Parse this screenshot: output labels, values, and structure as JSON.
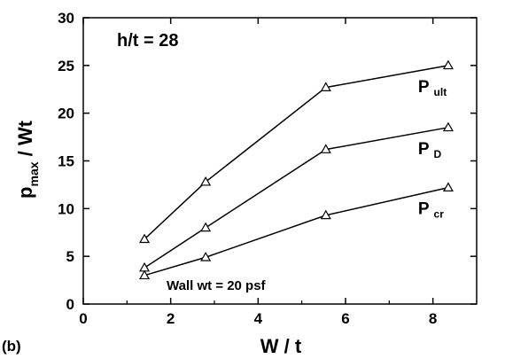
{
  "chart_data": {
    "type": "line",
    "xlabel": "W / t",
    "ylabel_main": "p",
    "ylabel_sub": "max",
    "ylabel_rest": " / Wt",
    "xlim": [
      0,
      9
    ],
    "ylim": [
      0,
      30
    ],
    "x_ticks": [
      0,
      2,
      4,
      6,
      8
    ],
    "y_ticks": [
      0,
      5,
      10,
      15,
      20,
      25,
      30
    ],
    "grid": false,
    "marker": "triangle",
    "series": [
      {
        "main": "P",
        "sub": "ult",
        "x": [
          1.4,
          2.8,
          5.55,
          8.35
        ],
        "y": [
          6.8,
          12.8,
          22.7,
          25.0
        ]
      },
      {
        "main": "P",
        "sub": "D",
        "x": [
          1.4,
          2.8,
          5.55,
          8.35
        ],
        "y": [
          3.8,
          8.0,
          16.2,
          18.5
        ]
      },
      {
        "main": "P",
        "sub": "cr",
        "x": [
          1.4,
          2.8,
          5.55,
          8.35
        ],
        "y": [
          3.0,
          4.9,
          9.3,
          12.2
        ]
      }
    ],
    "annotations": {
      "ratio": "h/t = 28",
      "wall": "Wall wt = 20 psf"
    },
    "panel_label": "(b)"
  }
}
